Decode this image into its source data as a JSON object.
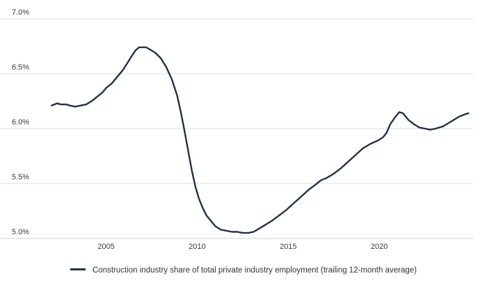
{
  "chart_data": {
    "type": "line",
    "title": "",
    "xlabel": "",
    "ylabel": "",
    "xlim": [
      2001.0,
      2025.0
    ],
    "ylim": [
      5.0,
      7.0
    ],
    "xticks": [
      2005,
      2010,
      2015,
      2020
    ],
    "yticks": [
      5.0,
      5.5,
      6.0,
      6.5,
      7.0
    ],
    "y_tick_format": "percent_1dp",
    "grid": "horizontal",
    "legend_position": "bottom",
    "series": [
      {
        "name": "Construction industry share of total private industry employment (trailing 12-month average)",
        "color": "#22304a",
        "points": [
          [
            2002.0,
            6.21
          ],
          [
            2002.3,
            6.23
          ],
          [
            2002.5,
            6.22
          ],
          [
            2002.8,
            6.22
          ],
          [
            2003.0,
            6.21
          ],
          [
            2003.3,
            6.2
          ],
          [
            2003.6,
            6.21
          ],
          [
            2003.9,
            6.22
          ],
          [
            2004.2,
            6.25
          ],
          [
            2004.5,
            6.29
          ],
          [
            2004.8,
            6.33
          ],
          [
            2005.0,
            6.37
          ],
          [
            2005.3,
            6.41
          ],
          [
            2005.6,
            6.47
          ],
          [
            2005.9,
            6.53
          ],
          [
            2006.1,
            6.58
          ],
          [
            2006.4,
            6.66
          ],
          [
            2006.6,
            6.71
          ],
          [
            2006.8,
            6.74
          ],
          [
            2007.0,
            6.74
          ],
          [
            2007.2,
            6.74
          ],
          [
            2007.4,
            6.72
          ],
          [
            2007.7,
            6.69
          ],
          [
            2008.0,
            6.64
          ],
          [
            2008.3,
            6.56
          ],
          [
            2008.6,
            6.45
          ],
          [
            2008.9,
            6.3
          ],
          [
            2009.1,
            6.15
          ],
          [
            2009.3,
            5.98
          ],
          [
            2009.5,
            5.8
          ],
          [
            2009.7,
            5.62
          ],
          [
            2009.9,
            5.47
          ],
          [
            2010.1,
            5.36
          ],
          [
            2010.3,
            5.28
          ],
          [
            2010.5,
            5.21
          ],
          [
            2010.8,
            5.15
          ],
          [
            2011.0,
            5.11
          ],
          [
            2011.3,
            5.08
          ],
          [
            2011.6,
            5.07
          ],
          [
            2011.9,
            5.06
          ],
          [
            2012.2,
            5.06
          ],
          [
            2012.5,
            5.05
          ],
          [
            2012.8,
            5.05
          ],
          [
            2013.1,
            5.06
          ],
          [
            2013.4,
            5.09
          ],
          [
            2013.8,
            5.13
          ],
          [
            2014.1,
            5.16
          ],
          [
            2014.5,
            5.21
          ],
          [
            2014.9,
            5.26
          ],
          [
            2015.3,
            5.32
          ],
          [
            2015.7,
            5.38
          ],
          [
            2016.1,
            5.44
          ],
          [
            2016.5,
            5.49
          ],
          [
            2016.8,
            5.53
          ],
          [
            2017.1,
            5.55
          ],
          [
            2017.5,
            5.59
          ],
          [
            2017.9,
            5.64
          ],
          [
            2018.3,
            5.7
          ],
          [
            2018.7,
            5.76
          ],
          [
            2019.1,
            5.82
          ],
          [
            2019.5,
            5.86
          ],
          [
            2019.9,
            5.89
          ],
          [
            2020.2,
            5.92
          ],
          [
            2020.4,
            5.96
          ],
          [
            2020.6,
            6.04
          ],
          [
            2020.9,
            6.11
          ],
          [
            2021.1,
            6.15
          ],
          [
            2021.3,
            6.14
          ],
          [
            2021.6,
            6.08
          ],
          [
            2021.9,
            6.04
          ],
          [
            2022.2,
            6.01
          ],
          [
            2022.5,
            6.0
          ],
          [
            2022.8,
            5.99
          ],
          [
            2023.1,
            6.0
          ],
          [
            2023.5,
            6.02
          ],
          [
            2023.8,
            6.05
          ],
          [
            2024.1,
            6.08
          ],
          [
            2024.4,
            6.11
          ],
          [
            2024.7,
            6.13
          ],
          [
            2024.9,
            6.14
          ]
        ]
      }
    ]
  }
}
